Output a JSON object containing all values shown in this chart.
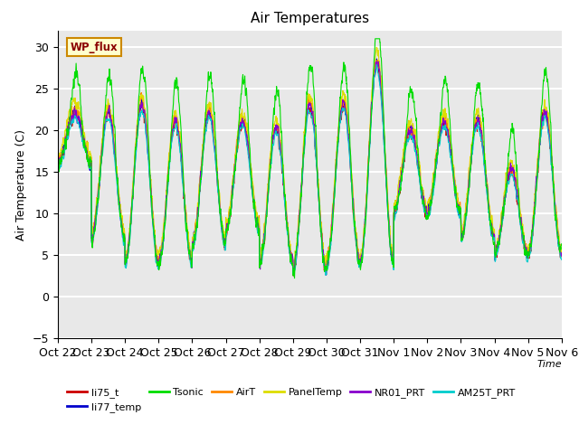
{
  "title": "Air Temperatures",
  "xlabel": "Time",
  "ylabel": "Air Temperature (C)",
  "ylim": [
    -5,
    32
  ],
  "yticks": [
    -5,
    0,
    5,
    10,
    15,
    20,
    25,
    30
  ],
  "xtick_labels": [
    "Oct 22",
    "Oct 23",
    "Oct 24",
    "Oct 25",
    "Oct 26",
    "Oct 27",
    "Oct 28",
    "Oct 29",
    "Oct 30",
    "Oct 31",
    "Nov 1",
    "Nov 2",
    "Nov 3",
    "Nov 4",
    "Nov 5",
    "Nov 6"
  ],
  "series_colors": {
    "li75_t": "#cc0000",
    "li77_temp": "#0000cc",
    "Tsonic": "#00dd00",
    "AirT": "#ff8800",
    "PanelTemp": "#dddd00",
    "NR01_PRT": "#8800cc",
    "AM25T_PRT": "#00cccc"
  },
  "legend_label": "WP_flux",
  "legend_box_color": "#ffffcc",
  "legend_box_edge": "#cc8800",
  "plot_bg_color": "#e8e8e8",
  "grid_color": "#ffffff",
  "n_points": 2160,
  "days": 15
}
